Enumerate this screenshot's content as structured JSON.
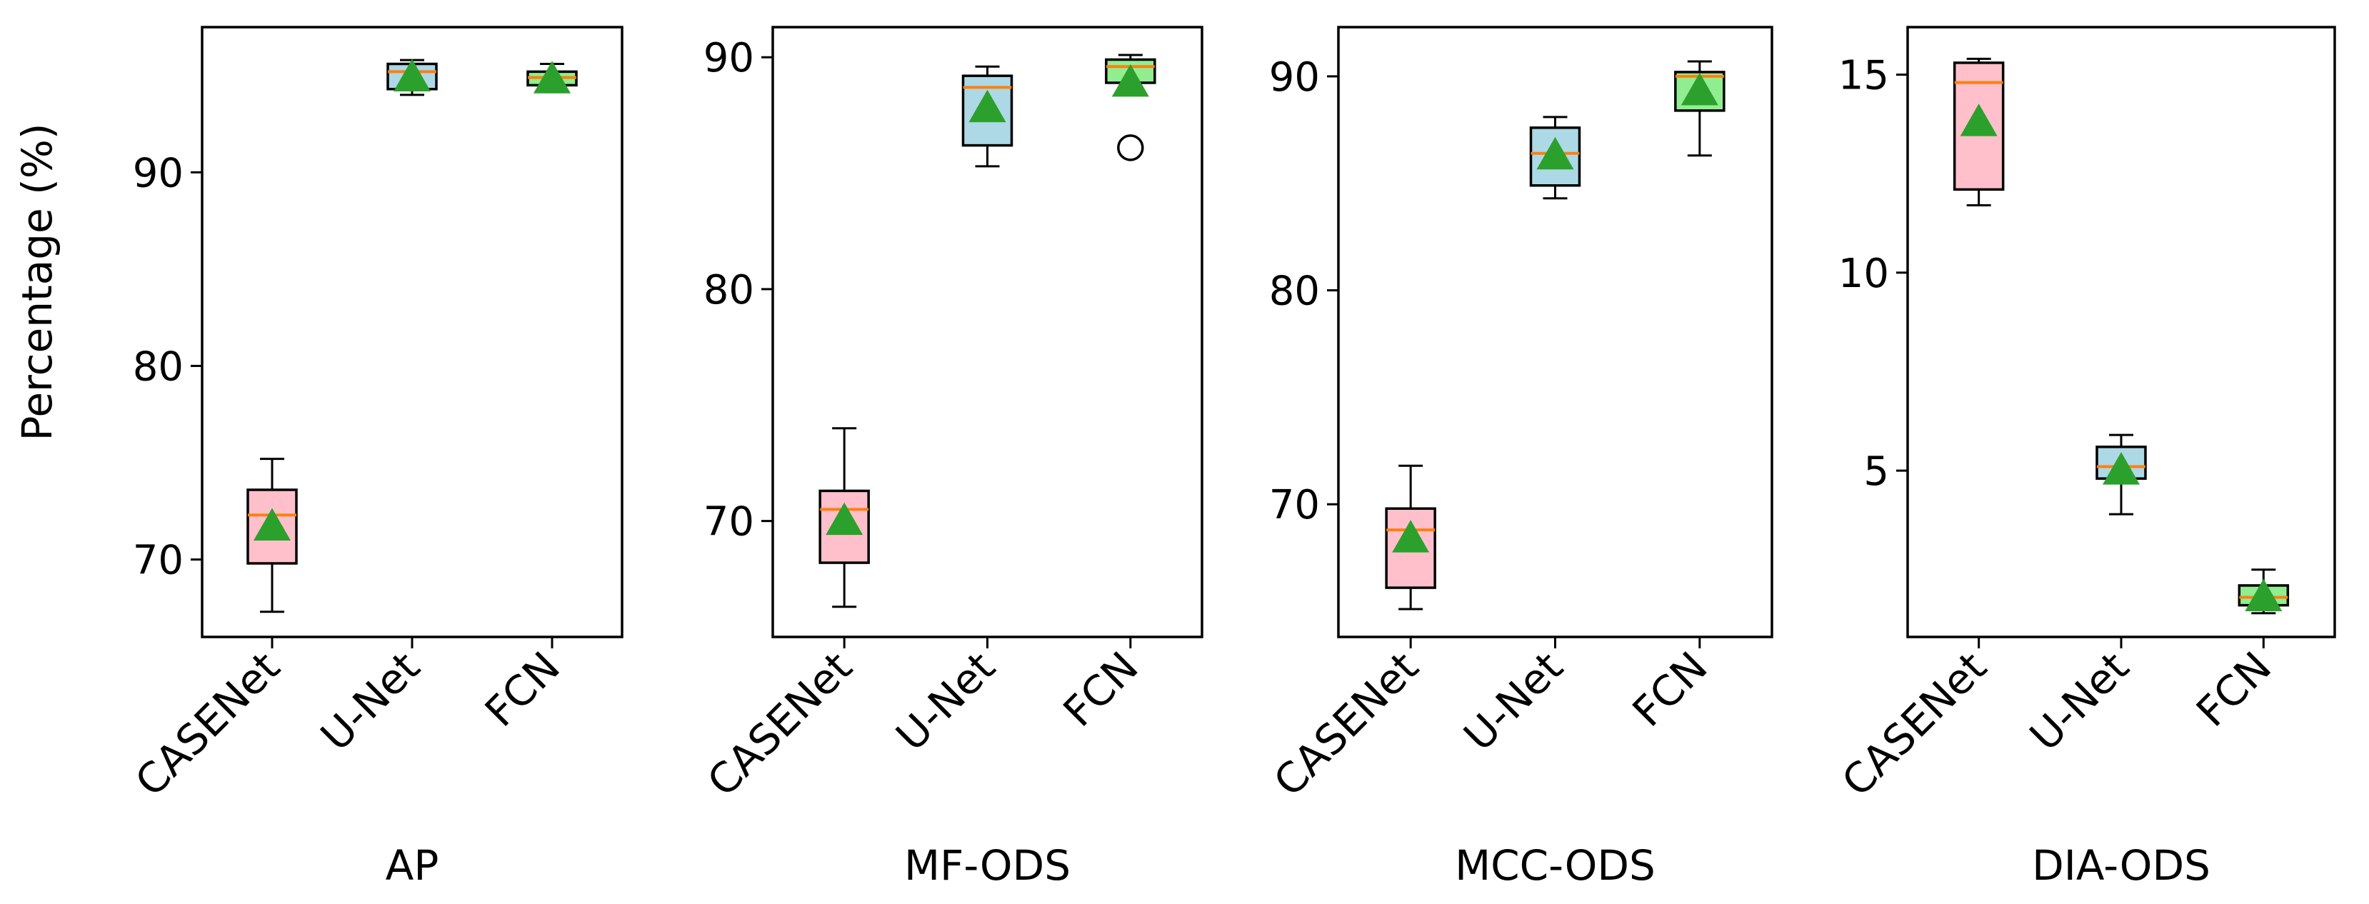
{
  "figure": {
    "ylabel": "Percentage (%)"
  },
  "colors": {
    "CASENet": "#ffc0cb",
    "U-Net": "#add8e6",
    "FCN": "#90ee90",
    "median": "#ff7f0e",
    "mean": "#2ca02c",
    "line": "#000000"
  },
  "chart_data": [
    {
      "type": "box",
      "xlabel": "AP",
      "categories": [
        "CASENet",
        "U-Net",
        "FCN"
      ],
      "ylim": [
        66,
        97.5
      ],
      "yticks": [
        70,
        80,
        90
      ],
      "boxes": [
        {
          "name": "CASENet",
          "whislo": 67.3,
          "q1": 69.8,
          "med": 72.3,
          "q3": 73.6,
          "whishi": 75.2,
          "mean": 71.7,
          "fliers": []
        },
        {
          "name": "U-Net",
          "whislo": 94.0,
          "q1": 94.3,
          "med": 95.2,
          "q3": 95.6,
          "whishi": 95.8,
          "mean": 94.9,
          "fliers": []
        },
        {
          "name": "FCN",
          "whislo": 94.2,
          "q1": 94.5,
          "med": 94.9,
          "q3": 95.2,
          "whishi": 95.6,
          "mean": 94.8,
          "fliers": []
        }
      ]
    },
    {
      "type": "box",
      "xlabel": "MF-ODS",
      "categories": [
        "CASENet",
        "U-Net",
        "FCN"
      ],
      "ylim": [
        65.0,
        91.3
      ],
      "yticks": [
        70,
        80,
        90
      ],
      "boxes": [
        {
          "name": "CASENet",
          "whislo": 66.3,
          "q1": 68.2,
          "med": 70.5,
          "q3": 71.3,
          "whishi": 74.0,
          "mean": 70.0,
          "fliers": []
        },
        {
          "name": "U-Net",
          "whislo": 85.3,
          "q1": 86.2,
          "med": 88.7,
          "q3": 89.2,
          "whishi": 89.6,
          "mean": 87.8,
          "fliers": []
        },
        {
          "name": "FCN",
          "whislo": 88.6,
          "q1": 88.9,
          "med": 89.6,
          "q3": 89.9,
          "whishi": 90.1,
          "mean": 88.9,
          "fliers": [
            86.1
          ]
        }
      ]
    },
    {
      "type": "box",
      "xlabel": "MCC-ODS",
      "categories": [
        "CASENet",
        "U-Net",
        "FCN"
      ],
      "ylim": [
        63.8,
        92.3
      ],
      "yticks": [
        70,
        80,
        90
      ],
      "boxes": [
        {
          "name": "CASENet",
          "whislo": 65.1,
          "q1": 66.1,
          "med": 68.8,
          "q3": 69.8,
          "whishi": 71.8,
          "mean": 68.4,
          "fliers": []
        },
        {
          "name": "U-Net",
          "whislo": 84.3,
          "q1": 84.9,
          "med": 86.4,
          "q3": 87.6,
          "whishi": 88.1,
          "mean": 86.3,
          "fliers": []
        },
        {
          "name": "FCN",
          "whislo": 86.3,
          "q1": 88.4,
          "med": 90.0,
          "q3": 90.2,
          "whishi": 90.7,
          "mean": 89.3,
          "fliers": []
        }
      ]
    },
    {
      "type": "box",
      "xlabel": "DIA-ODS",
      "categories": [
        "CASENet",
        "U-Net",
        "FCN"
      ],
      "ylim": [
        0.8,
        16.2
      ],
      "yticks": [
        5,
        10,
        15
      ],
      "boxes": [
        {
          "name": "CASENet",
          "whislo": 11.7,
          "q1": 12.1,
          "med": 14.8,
          "q3": 15.3,
          "whishi": 15.4,
          "mean": 13.8,
          "fliers": []
        },
        {
          "name": "U-Net",
          "whislo": 3.9,
          "q1": 4.8,
          "med": 5.1,
          "q3": 5.6,
          "whishi": 5.9,
          "mean": 5.0,
          "fliers": []
        },
        {
          "name": "FCN",
          "whislo": 1.4,
          "q1": 1.6,
          "med": 1.8,
          "q3": 2.1,
          "whishi": 2.5,
          "mean": 1.8,
          "fliers": []
        }
      ]
    }
  ]
}
